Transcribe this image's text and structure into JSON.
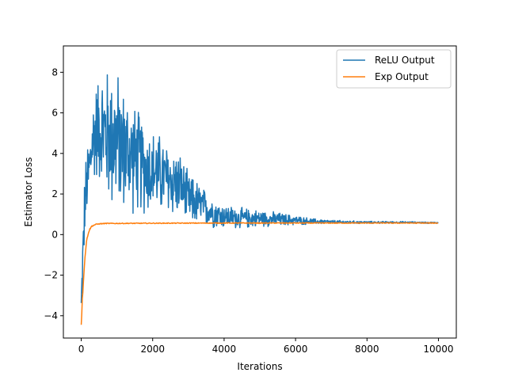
{
  "chart_data": {
    "type": "line",
    "title": "",
    "xlabel": "Iterations",
    "ylabel": "Estimator Loss",
    "xlim": [
      -500,
      10500
    ],
    "ylim": [
      -5.1,
      9.3
    ],
    "xticks": [
      0,
      2000,
      4000,
      6000,
      8000,
      10000
    ],
    "yticks": [
      -4,
      -2,
      0,
      2,
      4,
      6,
      8
    ],
    "legend_position": "top-right",
    "grid": false,
    "series": [
      {
        "name": "ReLU Output",
        "color": "#1f77b4",
        "style": "noisy",
        "x": [
          0,
          50,
          100,
          150,
          200,
          250,
          300,
          400,
          500,
          600,
          700,
          800,
          900,
          1000,
          1200,
          1400,
          1600,
          1800,
          2000,
          2200,
          2400,
          2600,
          2800,
          3000,
          3200,
          3400,
          3600,
          3800,
          4000,
          4500,
          5000,
          5500,
          6000,
          6500,
          7000,
          8000,
          9000,
          10000
        ],
        "y": [
          -3.5,
          -1.0,
          1.5,
          2.3,
          3.0,
          3.4,
          4.5,
          5.1,
          5.3,
          5.1,
          5.0,
          4.8,
          4.8,
          4.6,
          4.2,
          3.9,
          3.6,
          3.3,
          3.1,
          3.0,
          2.7,
          2.6,
          2.4,
          1.7,
          1.6,
          1.4,
          1.2,
          1.0,
          0.9,
          0.8,
          0.8,
          0.75,
          0.7,
          0.65,
          0.62,
          0.6,
          0.6,
          0.58
        ],
        "spread": [
          0.5,
          1.5,
          1.5,
          1.6,
          1.7,
          1.8,
          2.0,
          2.1,
          2.3,
          2.6,
          2.8,
          3.0,
          3.2,
          3.0,
          2.6,
          2.4,
          2.2,
          2.0,
          1.8,
          1.7,
          1.6,
          1.5,
          1.3,
          1.1,
          1.0,
          0.8,
          0.7,
          0.6,
          0.5,
          0.45,
          0.35,
          0.3,
          0.2,
          0.12,
          0.08,
          0.05,
          0.04,
          0.03
        ]
      },
      {
        "name": "Exp Output",
        "color": "#ff7f0e",
        "style": "smooth",
        "x": [
          0,
          20,
          50,
          80,
          120,
          160,
          200,
          250,
          300,
          400,
          500,
          700,
          1000,
          2000,
          4000,
          6000,
          8000,
          10000
        ],
        "y": [
          -4.4,
          -3.6,
          -2.6,
          -1.7,
          -0.8,
          -0.2,
          0.1,
          0.3,
          0.42,
          0.5,
          0.53,
          0.55,
          0.55,
          0.56,
          0.57,
          0.57,
          0.57,
          0.57
        ],
        "spread": [
          0.1,
          0.15,
          0.12,
          0.1,
          0.08,
          0.06,
          0.05,
          0.04,
          0.03,
          0.02,
          0.02,
          0.02,
          0.02,
          0.02,
          0.02,
          0.02,
          0.02,
          0.02
        ]
      }
    ]
  }
}
